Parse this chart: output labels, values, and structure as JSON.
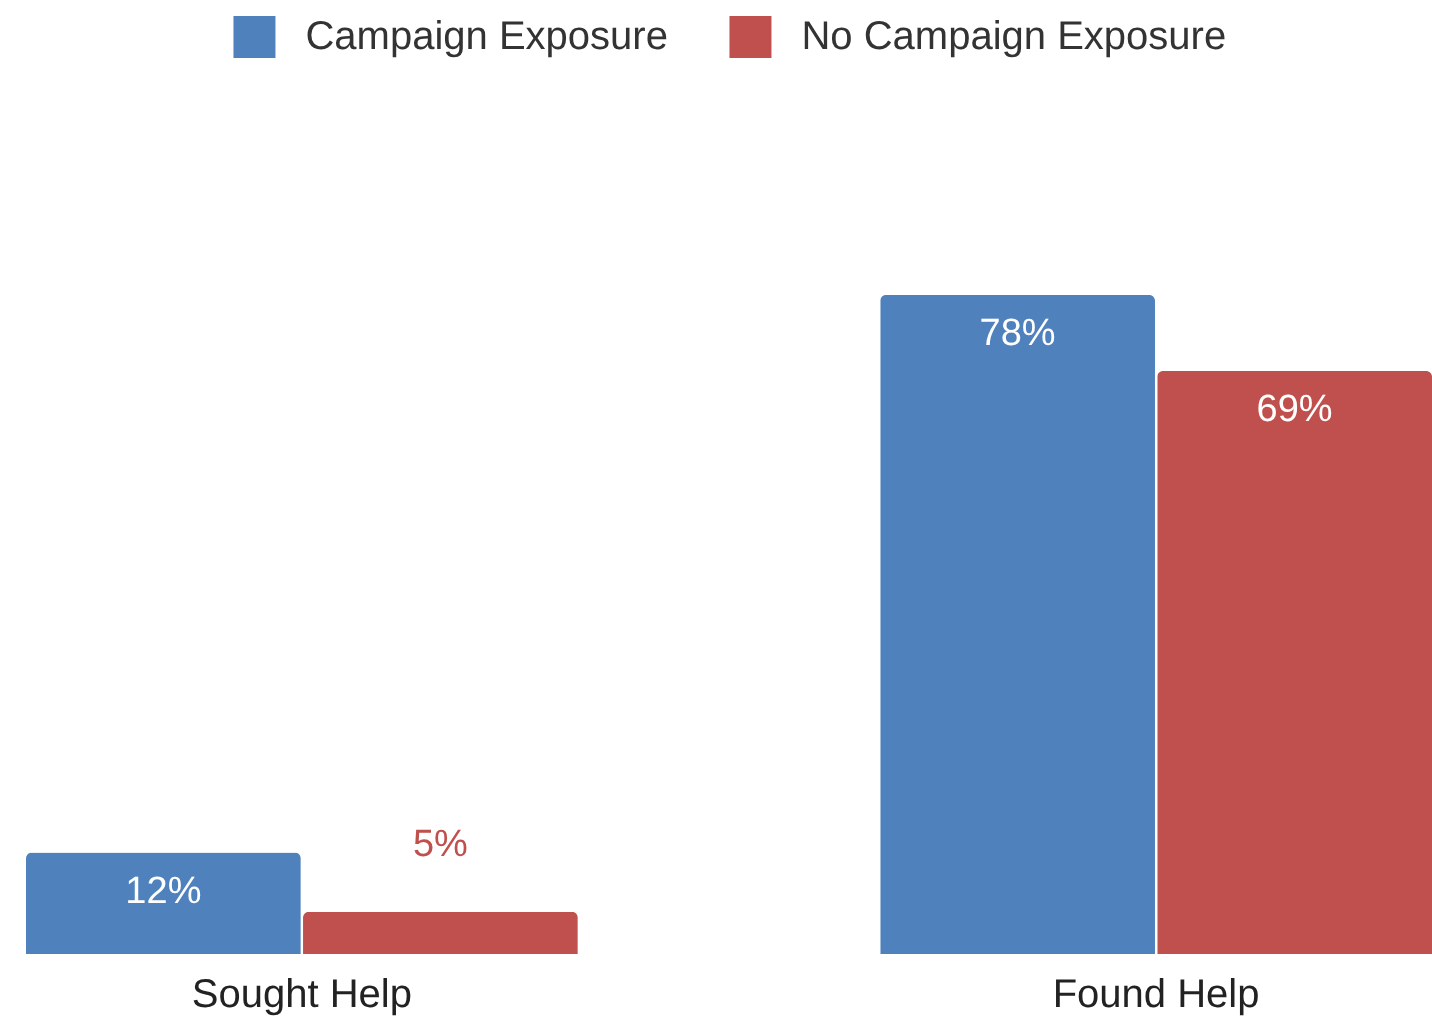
{
  "chart_data": {
    "type": "bar",
    "categories": [
      "Sought Help",
      "Found Help"
    ],
    "series": [
      {
        "name": "Campaign Exposure",
        "color": "#4f81bd",
        "values": [
          12,
          78
        ],
        "value_labels": [
          "12%",
          "78%"
        ]
      },
      {
        "name": "No Campaign Exposure",
        "color": "#c0504d",
        "values": [
          5,
          69
        ],
        "value_labels": [
          "5%",
          "69%"
        ]
      }
    ],
    "legend": "top"
  }
}
